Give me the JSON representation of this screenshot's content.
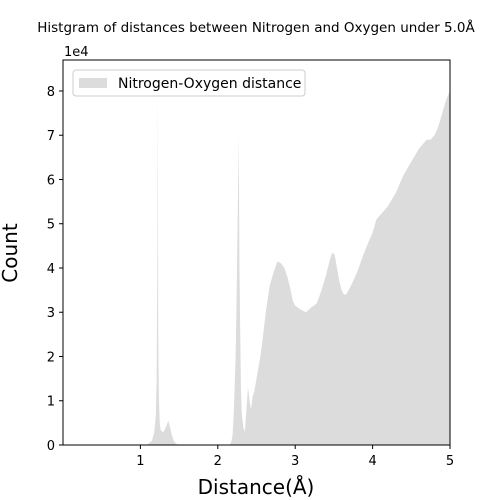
{
  "chart_data": {
    "type": "area",
    "title": "Histgram of distances between Nitrogen and Oxygen under 5.0Å",
    "xlabel": "Distance(Å)",
    "ylabel": "Count",
    "y_offset_label": "1e4",
    "xlim": [
      0,
      5
    ],
    "ylim": [
      0,
      8.7
    ],
    "y_units_multiplier": 10000,
    "xticks": [
      "1",
      "2",
      "3",
      "4",
      "5"
    ],
    "yticks": [
      "0",
      "1",
      "2",
      "3",
      "4",
      "5",
      "6",
      "7",
      "8"
    ],
    "grid": false,
    "legend_position": "top-left",
    "color": "#dcdcdc",
    "series": [
      {
        "name": "Nitrogen-Oxygen distance",
        "x": [
          0.0,
          1.05,
          1.1,
          1.15,
          1.18,
          1.2,
          1.21,
          1.22,
          1.225,
          1.23,
          1.24,
          1.25,
          1.26,
          1.28,
          1.3,
          1.33,
          1.36,
          1.39,
          1.41,
          1.43,
          1.46,
          1.5,
          1.55,
          2.15,
          2.17,
          2.19,
          2.2,
          2.21,
          2.23,
          2.24,
          2.26,
          2.27,
          2.28,
          2.29,
          2.3,
          2.31,
          2.33,
          2.35,
          2.37,
          2.39,
          2.41,
          2.43,
          2.45,
          2.47,
          2.5,
          2.52,
          2.55,
          2.58,
          2.62,
          2.67,
          2.72,
          2.77,
          2.82,
          2.86,
          2.9,
          2.94,
          2.97,
          3.0,
          3.04,
          3.08,
          3.14,
          3.2,
          3.28,
          3.34,
          3.4,
          3.45,
          3.48,
          3.51,
          3.53,
          3.57,
          3.6,
          3.63,
          3.66,
          3.72,
          3.8,
          3.88,
          3.95,
          4.0,
          4.05,
          4.1,
          4.2,
          4.3,
          4.4,
          4.5,
          4.6,
          4.7,
          4.75,
          4.8,
          4.85,
          4.9,
          4.95,
          5.0
        ],
        "y": [
          0.0,
          0.0,
          0.02,
          0.1,
          0.3,
          0.7,
          1.5,
          4.5,
          8.0,
          2.5,
          1.0,
          0.5,
          0.35,
          0.3,
          0.3,
          0.4,
          0.55,
          0.35,
          0.2,
          0.1,
          0.03,
          0.0,
          0.0,
          0.0,
          0.05,
          0.2,
          0.5,
          0.9,
          2.0,
          3.0,
          5.5,
          7.0,
          4.0,
          2.5,
          1.2,
          0.7,
          0.4,
          0.3,
          0.8,
          1.3,
          1.0,
          0.8,
          1.1,
          1.2,
          1.5,
          1.7,
          2.0,
          2.4,
          3.0,
          3.6,
          3.9,
          4.15,
          4.1,
          4.0,
          3.8,
          3.5,
          3.25,
          3.15,
          3.1,
          3.05,
          3.0,
          3.1,
          3.2,
          3.5,
          3.85,
          4.2,
          4.35,
          4.3,
          4.1,
          3.7,
          3.5,
          3.4,
          3.4,
          3.6,
          3.9,
          4.3,
          4.6,
          4.8,
          5.1,
          5.2,
          5.4,
          5.7,
          6.1,
          6.4,
          6.7,
          6.9,
          6.9,
          7.0,
          7.2,
          7.5,
          7.8,
          8.0
        ]
      }
    ]
  }
}
